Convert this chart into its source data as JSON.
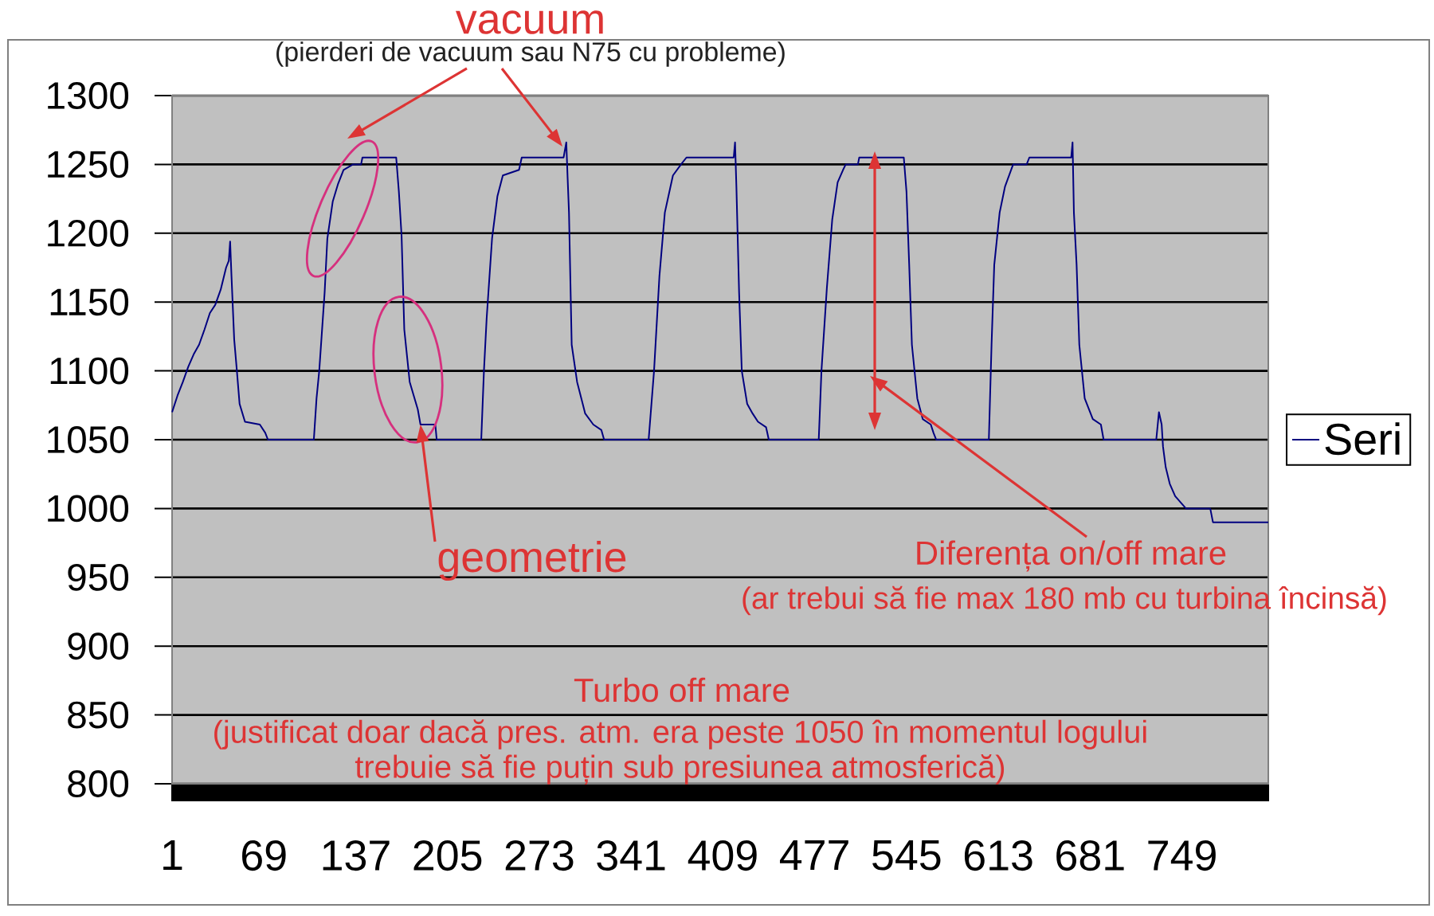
{
  "chart_data": {
    "type": "line",
    "x": [
      1,
      5,
      9,
      13,
      17,
      21,
      25,
      29,
      33,
      37,
      41,
      43,
      44,
      45,
      47,
      49,
      51,
      55,
      66,
      70,
      72,
      106,
      108,
      110,
      114,
      116,
      120,
      124,
      128,
      135,
      141,
      142,
      167,
      169,
      171,
      173,
      177,
      183,
      185,
      196,
      197,
      230,
      232,
      234,
      238,
      242,
      246,
      258,
      260,
      291,
      293,
      294,
      295,
      297,
      301,
      307,
      313,
      319,
      321,
      354,
      358,
      362,
      366,
      372,
      378,
      382,
      417,
      418,
      419,
      421,
      423,
      427,
      431,
      435,
      441,
      443,
      480,
      482,
      486,
      490,
      494,
      498,
      500,
      509,
      510,
      543,
      545,
      547,
      549,
      553,
      557,
      563,
      565,
      567,
      606,
      608,
      610,
      614,
      618,
      624,
      634,
      636,
      667,
      668,
      669,
      671,
      673,
      677,
      683,
      689,
      691,
      730,
      732,
      734,
      735,
      737,
      740,
      744,
      752,
      770,
      772,
      813
    ],
    "series": [
      {
        "name": "Seri",
        "color": "#000080",
        "values": [
          1070,
          1082,
          1092,
          1103,
          1112,
          1119,
          1130,
          1142,
          1148,
          1159,
          1175,
          1180,
          1194,
          1169,
          1123,
          1100,
          1076,
          1063,
          1061,
          1055,
          1050,
          1050,
          1080,
          1100,
          1157,
          1196,
          1223,
          1236,
          1246,
          1250,
          1250,
          1255,
          1255,
          1230,
          1198,
          1130,
          1092,
          1072,
          1061,
          1061,
          1050,
          1050,
          1100,
          1138,
          1196,
          1227,
          1242,
          1246,
          1255,
          1255,
          1266,
          1240,
          1215,
          1119,
          1092,
          1069,
          1061,
          1057,
          1050,
          1050,
          1100,
          1169,
          1215,
          1242,
          1250,
          1255,
          1255,
          1266,
          1234,
          1157,
          1100,
          1076,
          1069,
          1063,
          1059,
          1050,
          1050,
          1100,
          1160,
          1210,
          1237,
          1246,
          1250,
          1250,
          1255,
          1255,
          1230,
          1177,
          1119,
          1080,
          1065,
          1061,
          1055,
          1050,
          1050,
          1119,
          1177,
          1215,
          1234,
          1250,
          1250,
          1255,
          1255,
          1266,
          1215,
          1177,
          1119,
          1080,
          1065,
          1061,
          1050,
          1050,
          1070,
          1061,
          1045,
          1030,
          1018,
          1009,
          1000,
          1000,
          990,
          990
        ]
      }
    ],
    "xlim": [
      1,
      813
    ],
    "xticks": [
      1,
      69,
      137,
      205,
      273,
      341,
      409,
      477,
      545,
      613,
      681,
      749
    ],
    "ylim": [
      800,
      1300
    ],
    "yticks": [
      800,
      850,
      900,
      950,
      1000,
      1050,
      1100,
      1150,
      1200,
      1250,
      1300
    ],
    "grid": "y",
    "legend": "right",
    "annotations": [
      "vacuum",
      "(pierderi de vacuum sau N75 cu probleme)",
      {
        "text": "geometrie",
        "x": 185,
        "y": 1061
      },
      "Diferența on/off mare",
      "(ar trebui să fie max 180 mb cu turbina încinsă)",
      "Turbo off mare",
      "(justificat doar dacă pres. atm. era peste 1050 în momentul logului",
      "trebuie să fie puțin sub presiunea atmosferică)"
    ]
  }
}
